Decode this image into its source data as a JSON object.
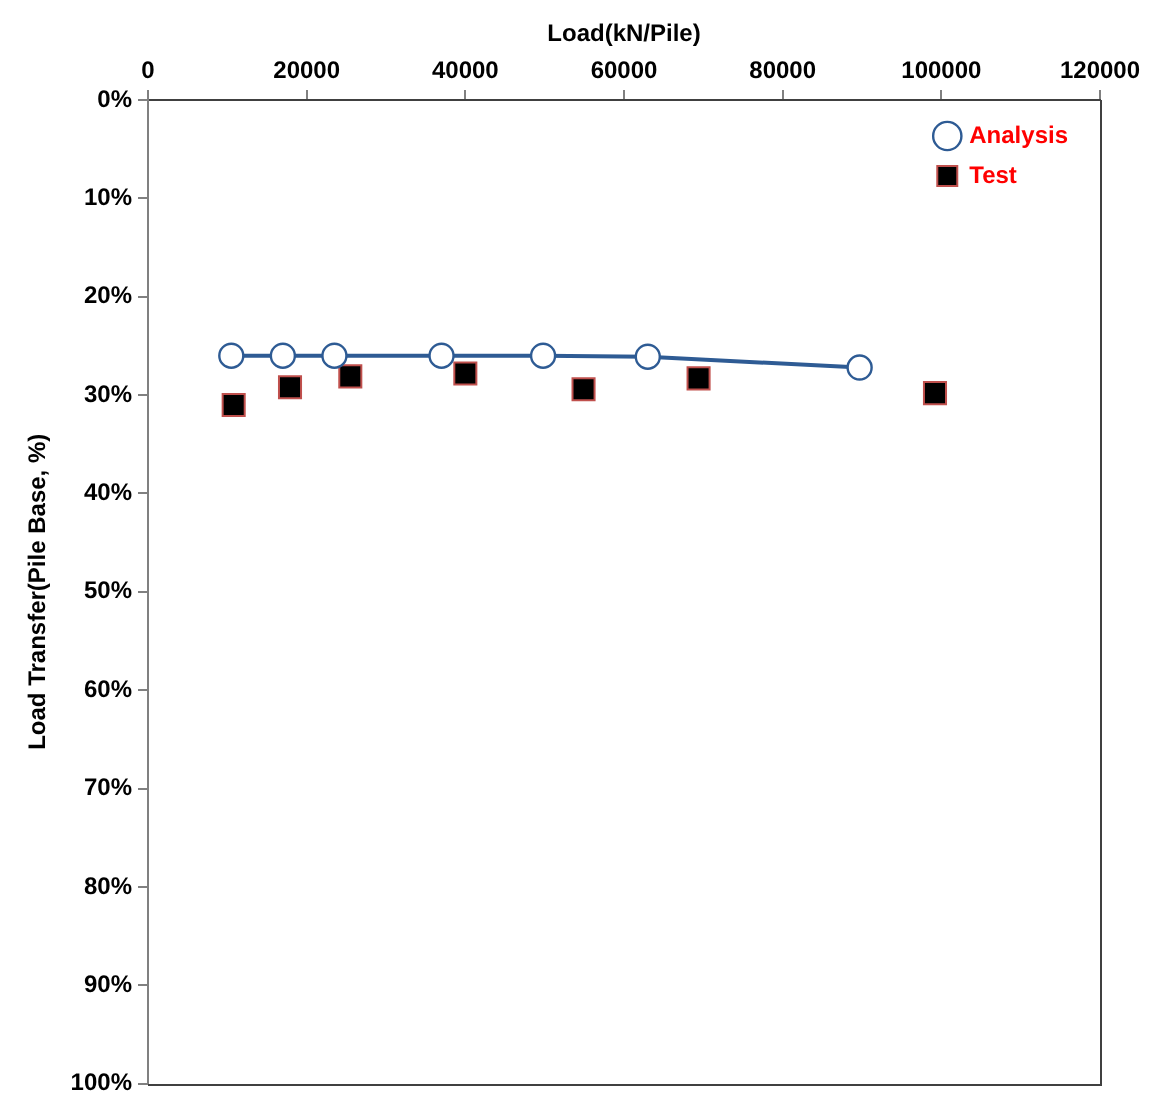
{
  "chart_data": {
    "type": "line",
    "xlabel": "Load(kN/Pile)",
    "ylabel": "Load Transfer(Pile Base, %)",
    "xlim": [
      0,
      120000
    ],
    "xticks": [
      0,
      20000,
      40000,
      60000,
      80000,
      100000,
      120000
    ],
    "ylim": [
      100,
      0
    ],
    "yticks": [
      {
        "value": 0,
        "label": "0%"
      },
      {
        "value": 10,
        "label": "10%"
      },
      {
        "value": 20,
        "label": "20%"
      },
      {
        "value": 30,
        "label": "30%"
      },
      {
        "value": 40,
        "label": "40%"
      },
      {
        "value": 50,
        "label": "50%"
      },
      {
        "value": 60,
        "label": "60%"
      },
      {
        "value": 70,
        "label": "70%"
      },
      {
        "value": 80,
        "label": "80%"
      },
      {
        "value": 90,
        "label": "90%"
      },
      {
        "value": 100,
        "label": "100%"
      }
    ],
    "grid": false,
    "legend": "top right",
    "series": [
      {
        "name": "Analysis",
        "color": "#2e5b94",
        "marker": "circle",
        "x": [
          10500,
          17000,
          23500,
          37000,
          49800,
          63000,
          89700
        ],
        "values": [
          26,
          26,
          26,
          26,
          26,
          26.1,
          27.2
        ]
      },
      {
        "name": "Test",
        "type": "scatter",
        "color": "#000000",
        "marker": "square",
        "x": [
          10800,
          17900,
          25500,
          40000,
          54900,
          69400,
          99200
        ],
        "values": [
          31,
          29.2,
          28.1,
          27.8,
          29.4,
          28.3,
          29.8
        ]
      }
    ]
  }
}
